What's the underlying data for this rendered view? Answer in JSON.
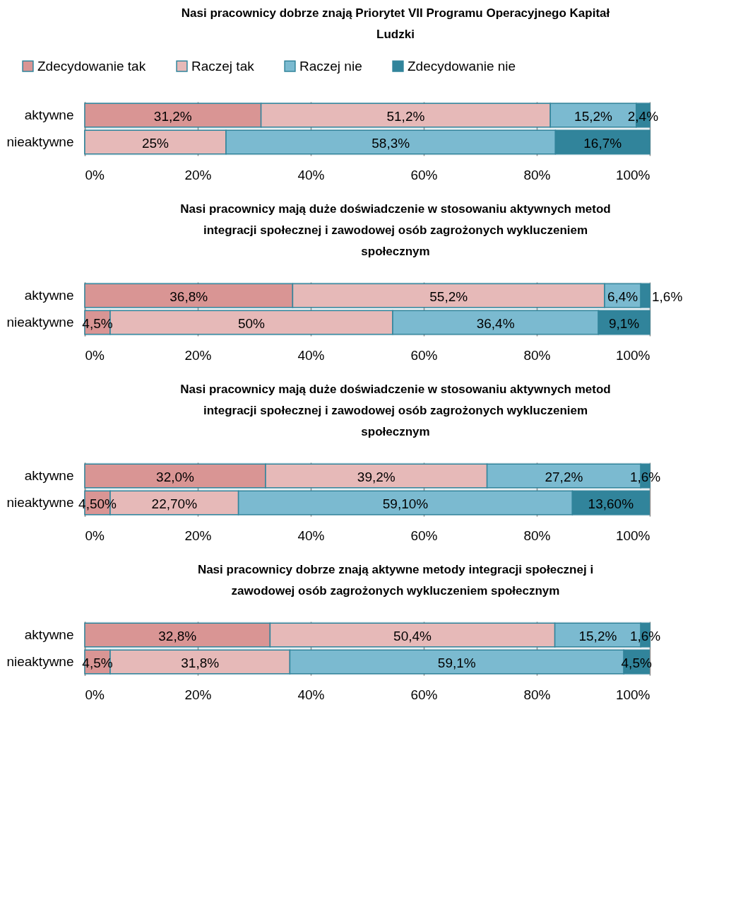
{
  "chart_data": [
    {
      "type": "bar",
      "orientation": "horizontal",
      "stacked": true,
      "title": "Nasi pracownicy dobrze znają Priorytet VII Programu Operacyjnego Kapitał Ludzki",
      "categories": [
        "aktywne",
        "nieaktywne"
      ],
      "xlim": [
        0,
        100
      ],
      "xticks": [
        {
          "value": 0,
          "label": "0%"
        },
        {
          "value": 20,
          "label": "20%"
        },
        {
          "value": 40,
          "label": "40%"
        },
        {
          "value": 60,
          "label": "60%"
        },
        {
          "value": 80,
          "label": "80%"
        },
        {
          "value": 100,
          "label": "100%"
        }
      ],
      "grid": "x",
      "legend": "top",
      "series": [
        {
          "name": "Zdecydowanie tak",
          "color": "#d99594",
          "values": [
            31.2,
            0
          ],
          "value_labels": [
            "31,2%",
            null
          ]
        },
        {
          "name": "Raczej tak",
          "color": "#e6b9b8",
          "values": [
            51.2,
            25
          ],
          "value_labels": [
            "51,2%",
            "25%"
          ]
        },
        {
          "name": "Raczej nie",
          "color": "#7bbad0",
          "values": [
            15.2,
            58.3
          ],
          "value_labels": [
            "15,2%",
            "58,3%"
          ]
        },
        {
          "name": "Zdecydowanie nie",
          "color": "#31849b",
          "values": [
            2.4,
            16.7
          ],
          "value_labels": [
            "2,4%",
            "16,7%"
          ]
        }
      ]
    },
    {
      "type": "bar",
      "orientation": "horizontal",
      "stacked": true,
      "title": "Nasi pracownicy mają duże doświadczenie w stosowaniu aktywnych metod integracji społecznej i zawodowej osób zagrożonych wykluczeniem społecznym",
      "categories": [
        "aktywne",
        "nieaktywne"
      ],
      "xlim": [
        0,
        100
      ],
      "xticks": [
        {
          "value": 0,
          "label": "0%"
        },
        {
          "value": 20,
          "label": "20%"
        },
        {
          "value": 40,
          "label": "40%"
        },
        {
          "value": 60,
          "label": "60%"
        },
        {
          "value": 80,
          "label": "80%"
        },
        {
          "value": 100,
          "label": "100%"
        }
      ],
      "grid": "x",
      "series": [
        {
          "color": "#d99594",
          "values": [
            36.8,
            4.5
          ],
          "value_labels": [
            "36,8%",
            "4,5%"
          ]
        },
        {
          "color": "#e6b9b8",
          "values": [
            55.2,
            50
          ],
          "value_labels": [
            "55,2%",
            "50%"
          ]
        },
        {
          "color": "#7bbad0",
          "values": [
            6.4,
            36.4
          ],
          "value_labels": [
            "6,4%",
            "36,4%"
          ]
        },
        {
          "color": "#31849b",
          "values": [
            1.6,
            9.1
          ],
          "value_labels": [
            "1,6%",
            "9,1%"
          ]
        }
      ]
    },
    {
      "type": "bar",
      "orientation": "horizontal",
      "stacked": true,
      "title": "Nasi pracownicy mają duże doświadczenie w stosowaniu aktywnych metod integracji społecznej i zawodowej osób zagrożonych wykluczeniem społecznym",
      "categories": [
        "aktywne",
        "nieaktywne"
      ],
      "xlim": [
        0,
        100
      ],
      "xticks": [
        {
          "value": 0,
          "label": "0%"
        },
        {
          "value": 20,
          "label": "20%"
        },
        {
          "value": 40,
          "label": "40%"
        },
        {
          "value": 60,
          "label": "60%"
        },
        {
          "value": 80,
          "label": "80%"
        },
        {
          "value": 100,
          "label": "100%"
        }
      ],
      "grid": "x",
      "series": [
        {
          "color": "#d99594",
          "values": [
            32.0,
            4.5
          ],
          "value_labels": [
            "32,0%",
            "4,50%"
          ]
        },
        {
          "color": "#e6b9b8",
          "values": [
            39.2,
            22.7
          ],
          "value_labels": [
            "39,2%",
            "22,70%"
          ]
        },
        {
          "color": "#7bbad0",
          "values": [
            27.2,
            59.1
          ],
          "value_labels": [
            "27,2%",
            "59,10%"
          ]
        },
        {
          "color": "#31849b",
          "values": [
            1.6,
            13.6
          ],
          "value_labels": [
            "1,6%",
            "13,60%"
          ]
        }
      ]
    },
    {
      "type": "bar",
      "orientation": "horizontal",
      "stacked": true,
      "title": "Nasi pracownicy dobrze znają aktywne metody integracji społecznej i zawodowej osób zagrożonych wykluczeniem społecznym",
      "categories": [
        "aktywne",
        "nieaktywne"
      ],
      "xlim": [
        0,
        100
      ],
      "xticks": [
        {
          "value": 0,
          "label": "0%"
        },
        {
          "value": 20,
          "label": "20%"
        },
        {
          "value": 40,
          "label": "40%"
        },
        {
          "value": 60,
          "label": "60%"
        },
        {
          "value": 80,
          "label": "80%"
        },
        {
          "value": 100,
          "label": "100%"
        }
      ],
      "grid": "x",
      "series": [
        {
          "color": "#d99594",
          "values": [
            32.8,
            4.5
          ],
          "value_labels": [
            "32,8%",
            "4,5%"
          ]
        },
        {
          "color": "#e6b9b8",
          "values": [
            50.4,
            31.8
          ],
          "value_labels": [
            "50,4%",
            "31,8%"
          ]
        },
        {
          "color": "#7bbad0",
          "values": [
            15.2,
            59.1
          ],
          "value_labels": [
            "15,2%",
            "59,1%"
          ]
        },
        {
          "color": "#31849b",
          "values": [
            1.6,
            4.5
          ],
          "value_labels": [
            "1,6%",
            "4,5%"
          ]
        }
      ]
    }
  ]
}
